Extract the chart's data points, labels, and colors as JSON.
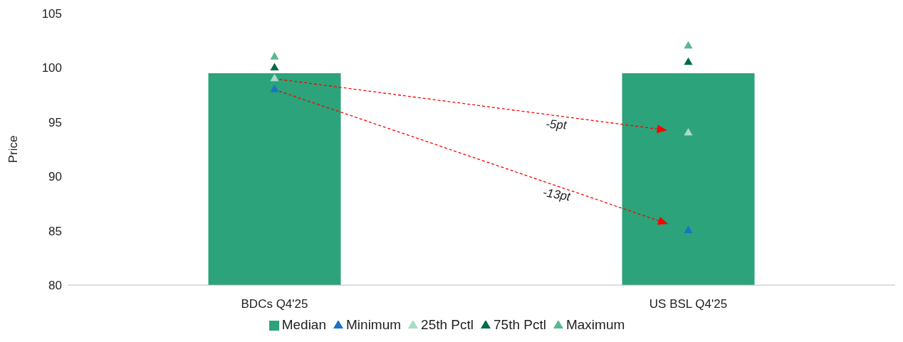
{
  "chart_data": {
    "type": "bar",
    "categories": [
      "BDCs Q4'25",
      "US BSL Q4'25"
    ],
    "ylabel": "Price",
    "ylim": [
      80,
      105
    ],
    "yticks": [
      80,
      85,
      90,
      95,
      100,
      105
    ],
    "grid": false,
    "legend": "bottom",
    "marker": "triangle",
    "series": [
      {
        "name": "Median",
        "color": "#2ca37a",
        "values": [
          99.5,
          99.5
        ]
      },
      {
        "name": "Minimum",
        "type": "scatter",
        "color": "#1a73c6",
        "values": [
          98,
          85
        ]
      },
      {
        "name": "25th Pctl",
        "type": "scatter",
        "color": "#a8dcc4",
        "values": [
          99,
          94
        ]
      },
      {
        "name": "75th Pctl",
        "type": "scatter",
        "color": "#006b45",
        "values": [
          100,
          100.5
        ]
      },
      {
        "name": "Maximum",
        "type": "scatter",
        "color": "#5cb88f",
        "values": [
          101,
          102
        ]
      }
    ],
    "annotations": [
      "-5pt",
      "-13pt"
    ]
  }
}
